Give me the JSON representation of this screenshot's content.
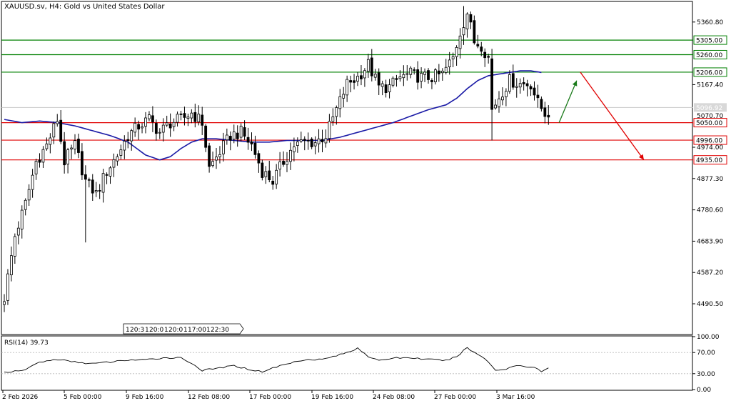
{
  "header": {
    "symbol_label": "XAUUSD.sv, H4:  Gold vs United States Dollar"
  },
  "rsi_label": "RSI(14) 39.73",
  "colors": {
    "bull": "#ffffff",
    "bear": "#000000",
    "wick": "#000000",
    "ma": "#1a1aa6",
    "support": "#e00000",
    "resistance": "#008000",
    "arrow_up": "#1a7a1a",
    "arrow_down": "#e00000",
    "grid_border": "#000000"
  },
  "chart_data": [
    {
      "type": "candlestick",
      "title": "XAUUSD.sv, H4:  Gold vs United States Dollar",
      "ylim": [
        4400,
        5420
      ],
      "y_ticks": [
        "5360.80",
        "5167.40",
        "4974.00",
        "4877.30",
        "4780.60",
        "4683.90",
        "4587.20",
        "4490.50"
      ],
      "x_ticks": [
        "2 Feb 2026",
        "5 Feb 00:00",
        "9 Feb 16:00",
        "12 Feb 08:00",
        "17 Feb 00:00",
        "19 Feb 16:00",
        "24 Feb 08:00",
        "27 Feb 00:00",
        "3 Mar 16:00"
      ],
      "current_price_label": "5096.92",
      "partial_price_label": "5070.70",
      "resistance_levels": [
        {
          "value": 5305.0,
          "label": "5305.00"
        },
        {
          "value": 5260.0,
          "label": "5260.00"
        },
        {
          "value": 5206.0,
          "label": "5206.00"
        }
      ],
      "support_levels": [
        {
          "value": 5050.0,
          "label": "5050.00"
        },
        {
          "value": 4996.0,
          "label": "4996.00"
        },
        {
          "value": 4935.0,
          "label": "4935.00"
        }
      ],
      "scrollbar_labels": [
        "1",
        "20:3",
        "1",
        "20:0",
        "1",
        "20:0",
        "1",
        "17:00",
        "1",
        "22:30"
      ],
      "anchors": [
        [
          0,
          4510
        ],
        [
          3,
          4700
        ],
        [
          6,
          4800
        ],
        [
          9,
          4930
        ],
        [
          12,
          4980
        ],
        [
          15,
          5060
        ],
        [
          17,
          4930
        ],
        [
          20,
          4980
        ],
        [
          23,
          4870
        ],
        [
          26,
          4830
        ],
        [
          29,
          4900
        ],
        [
          32,
          4950
        ],
        [
          35,
          5010
        ],
        [
          38,
          5040
        ],
        [
          41,
          5060
        ],
        [
          44,
          5020
        ],
        [
          47,
          5050
        ],
        [
          50,
          5060
        ],
        [
          53,
          5080
        ],
        [
          56,
          5050
        ],
        [
          58,
          4910
        ],
        [
          61,
          4960
        ],
        [
          64,
          5010
        ],
        [
          67,
          5020
        ],
        [
          70,
          4980
        ],
        [
          73,
          4900
        ],
        [
          76,
          4870
        ],
        [
          79,
          4930
        ],
        [
          82,
          4980
        ],
        [
          85,
          4990
        ],
        [
          88,
          4990
        ],
        [
          91,
          5010
        ],
        [
          94,
          5090
        ],
        [
          97,
          5170
        ],
        [
          100,
          5190
        ],
        [
          103,
          5230
        ],
        [
          106,
          5160
        ],
        [
          109,
          5160
        ],
        [
          112,
          5190
        ],
        [
          115,
          5200
        ],
        [
          118,
          5190
        ],
        [
          121,
          5190
        ],
        [
          124,
          5200
        ],
        [
          127,
          5250
        ],
        [
          129,
          5330
        ],
        [
          131,
          5390
        ],
        [
          133,
          5300
        ],
        [
          135,
          5290
        ],
        [
          137,
          5250
        ],
        [
          138,
          5090
        ],
        [
          140,
          5130
        ],
        [
          143,
          5180
        ],
        [
          146,
          5170
        ],
        [
          149,
          5170
        ],
        [
          151,
          5110
        ],
        [
          153,
          5080
        ],
        [
          154,
          5080
        ]
      ],
      "ma_series": [
        [
          0,
          5060
        ],
        [
          5,
          5050
        ],
        [
          10,
          5055
        ],
        [
          15,
          5050
        ],
        [
          20,
          5040
        ],
        [
          25,
          5025
        ],
        [
          30,
          5010
        ],
        [
          35,
          4990
        ],
        [
          40,
          4950
        ],
        [
          44,
          4935
        ],
        [
          47,
          4945
        ],
        [
          50,
          4970
        ],
        [
          53,
          4990
        ],
        [
          56,
          5000
        ],
        [
          60,
          5000
        ],
        [
          65,
          4995
        ],
        [
          70,
          4990
        ],
        [
          75,
          4990
        ],
        [
          80,
          4995
        ],
        [
          85,
          4995
        ],
        [
          90,
          4995
        ],
        [
          95,
          5005
        ],
        [
          100,
          5020
        ],
        [
          105,
          5035
        ],
        [
          110,
          5050
        ],
        [
          115,
          5070
        ],
        [
          120,
          5090
        ],
        [
          125,
          5105
        ],
        [
          128,
          5125
        ],
        [
          131,
          5155
        ],
        [
          134,
          5180
        ],
        [
          137,
          5195
        ],
        [
          140,
          5200
        ],
        [
          143,
          5205
        ],
        [
          146,
          5210
        ],
        [
          149,
          5210
        ],
        [
          152,
          5205
        ]
      ],
      "projection": {
        "up": {
          "from": [
            157,
            5050
          ],
          "to": [
            162,
            5180
          ]
        },
        "down": {
          "from": [
            163,
            5206
          ],
          "to": [
            181,
            4935
          ]
        }
      }
    },
    {
      "type": "line",
      "title": "RSI(14) 39.73",
      "ylim": [
        0,
        100
      ],
      "y_ticks": [
        "100.00",
        "70.00",
        "30.00",
        "0.00"
      ],
      "anchors": [
        [
          0,
          33
        ],
        [
          5,
          35
        ],
        [
          10,
          52
        ],
        [
          15,
          57
        ],
        [
          20,
          52
        ],
        [
          25,
          49
        ],
        [
          30,
          52
        ],
        [
          35,
          56
        ],
        [
          40,
          56
        ],
        [
          45,
          60
        ],
        [
          50,
          60
        ],
        [
          53,
          50
        ],
        [
          56,
          36
        ],
        [
          60,
          40
        ],
        [
          65,
          45
        ],
        [
          70,
          37
        ],
        [
          73,
          34
        ],
        [
          78,
          45
        ],
        [
          85,
          57
        ],
        [
          90,
          57
        ],
        [
          95,
          66
        ],
        [
          98,
          72
        ],
        [
          100,
          79
        ],
        [
          103,
          63
        ],
        [
          106,
          54
        ],
        [
          110,
          60
        ],
        [
          115,
          60
        ],
        [
          120,
          57
        ],
        [
          125,
          55
        ],
        [
          128,
          62
        ],
        [
          130,
          74
        ],
        [
          131,
          79
        ],
        [
          133,
          70
        ],
        [
          135,
          63
        ],
        [
          137,
          53
        ],
        [
          139,
          37
        ],
        [
          141,
          37
        ],
        [
          145,
          46
        ],
        [
          150,
          42
        ],
        [
          152,
          34
        ],
        [
          154,
          40
        ]
      ]
    }
  ]
}
